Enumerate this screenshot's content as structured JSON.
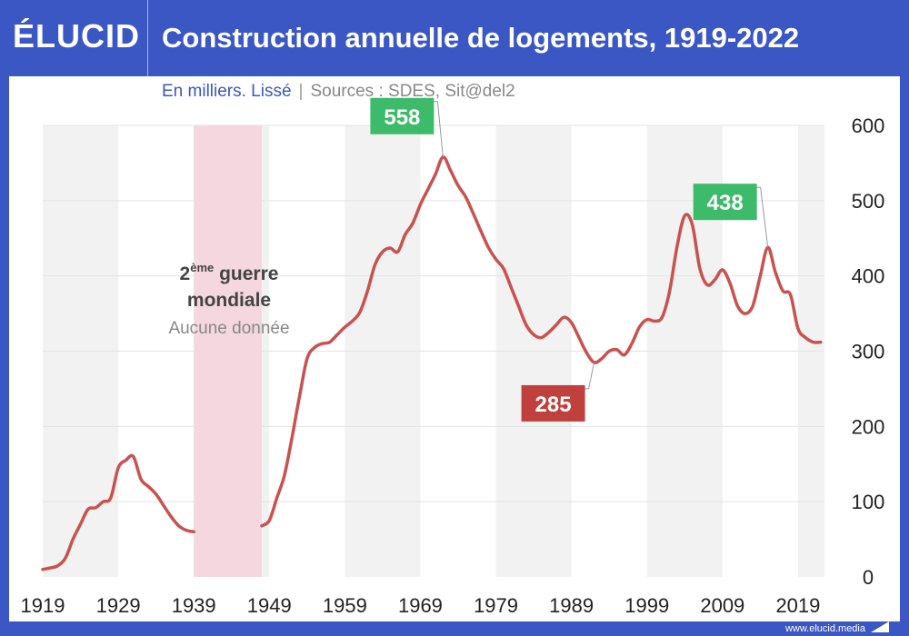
{
  "header": {
    "logo": "ÉLUCID",
    "title": "Construction annuelle de logements, 1919-2022"
  },
  "subtitle": {
    "units": "En milliers. Lissé",
    "separator": "|",
    "sources": "Sources : SDES, Sit@del2"
  },
  "footer": {
    "url": "www.elucid.media"
  },
  "colors": {
    "brand": "#3b57c4",
    "line": "#c8524f",
    "peak_badge": "#3dbb6a",
    "trough_badge": "#c0403d",
    "war_band": "#f4d7df",
    "stripe": "#f2f2f2"
  },
  "chart_data": {
    "type": "line",
    "title": "Construction annuelle de logements, 1919-2022",
    "ylabel": "",
    "xlabel": "",
    "xlim": [
      1919,
      2022.5
    ],
    "ylim": [
      0,
      600
    ],
    "y_ticks": [
      0,
      100,
      200,
      300,
      400,
      500,
      600
    ],
    "x_ticks": [
      1919,
      1929,
      1939,
      1949,
      1959,
      1969,
      1979,
      1989,
      1999,
      2009,
      2019
    ],
    "y_axis_position": "right",
    "grid": true,
    "shaded_region": {
      "from": 1939,
      "to": 1948,
      "label_line1": "2",
      "label_sup": "ème",
      "label_line1_rest": " guerre",
      "label_line2": "mondiale",
      "label_line3": "Aucune donnée"
    },
    "series": [
      {
        "segments": [
          [
            [
              1919,
              10
            ],
            [
              1920,
              12
            ],
            [
              1921,
              15
            ],
            [
              1922,
              25
            ],
            [
              1923,
              50
            ],
            [
              1924,
              70
            ],
            [
              1925,
              90
            ],
            [
              1926,
              92
            ],
            [
              1927,
              100
            ],
            [
              1928,
              105
            ],
            [
              1929,
              145
            ],
            [
              1930,
              155
            ],
            [
              1931,
              160
            ],
            [
              1932,
              130
            ],
            [
              1933,
              120
            ],
            [
              1934,
              110
            ],
            [
              1935,
              95
            ],
            [
              1936,
              80
            ],
            [
              1937,
              68
            ],
            [
              1938,
              62
            ],
            [
              1939,
              60
            ]
          ],
          [
            [
              1948,
              68
            ],
            [
              1949,
              75
            ],
            [
              1950,
              105
            ],
            [
              1951,
              135
            ],
            [
              1952,
              185
            ],
            [
              1953,
              240
            ],
            [
              1954,
              290
            ],
            [
              1955,
              305
            ],
            [
              1956,
              310
            ],
            [
              1957,
              312
            ],
            [
              1958,
              322
            ],
            [
              1959,
              332
            ],
            [
              1960,
              340
            ],
            [
              1961,
              352
            ],
            [
              1962,
              380
            ],
            [
              1963,
              415
            ],
            [
              1964,
              432
            ],
            [
              1965,
              437
            ],
            [
              1966,
              432
            ],
            [
              1967,
              455
            ],
            [
              1968,
              470
            ],
            [
              1969,
              495
            ],
            [
              1970,
              515
            ],
            [
              1971,
              535
            ],
            [
              1972,
              558
            ],
            [
              1973,
              540
            ],
            [
              1974,
              520
            ],
            [
              1975,
              505
            ],
            [
              1976,
              483
            ],
            [
              1977,
              460
            ],
            [
              1978,
              438
            ],
            [
              1979,
              422
            ],
            [
              1980,
              410
            ],
            [
              1981,
              385
            ],
            [
              1982,
              360
            ],
            [
              1983,
              335
            ],
            [
              1984,
              322
            ],
            [
              1985,
              318
            ],
            [
              1986,
              325
            ],
            [
              1987,
              335
            ],
            [
              1988,
              345
            ],
            [
              1989,
              338
            ],
            [
              1990,
              318
            ],
            [
              1991,
              298
            ],
            [
              1992,
              285
            ],
            [
              1993,
              290
            ],
            [
              1994,
              300
            ],
            [
              1995,
              302
            ],
            [
              1996,
              295
            ],
            [
              1997,
              310
            ],
            [
              1998,
              332
            ],
            [
              1999,
              342
            ],
            [
              2000,
              340
            ],
            [
              2001,
              345
            ],
            [
              2002,
              380
            ],
            [
              2003,
              440
            ],
            [
              2004,
              480
            ],
            [
              2005,
              468
            ],
            [
              2006,
              410
            ],
            [
              2007,
              388
            ],
            [
              2008,
              395
            ],
            [
              2009,
              408
            ],
            [
              2010,
              390
            ],
            [
              2011,
              360
            ],
            [
              2012,
              350
            ],
            [
              2013,
              360
            ],
            [
              2014,
              400
            ],
            [
              2015,
              438
            ],
            [
              2016,
              405
            ],
            [
              2017,
              380
            ],
            [
              2018,
              375
            ],
            [
              2019,
              330
            ],
            [
              2020,
              318
            ],
            [
              2021,
              312
            ],
            [
              2022,
              312
            ]
          ]
        ]
      }
    ],
    "annotations": [
      {
        "label": "558",
        "x": 1972,
        "y": 558,
        "kind": "peak"
      },
      {
        "label": "285",
        "x": 1992,
        "y": 285,
        "kind": "trough"
      },
      {
        "label": "438",
        "x": 2015,
        "y": 438,
        "kind": "peak"
      }
    ]
  }
}
